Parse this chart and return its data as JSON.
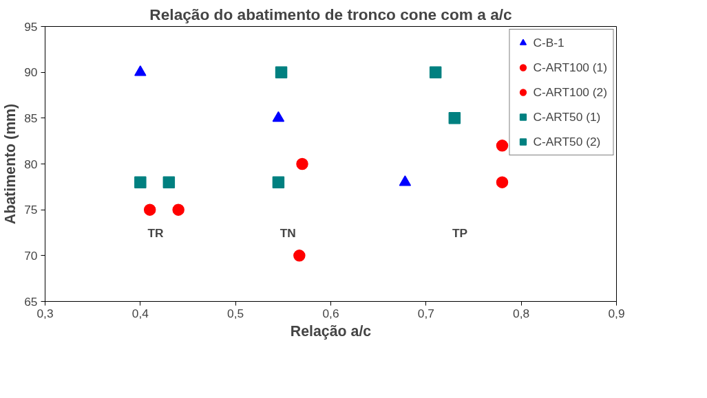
{
  "chart_data": {
    "type": "scatter",
    "title": "Relação do abatimento de tronco cone com a a/c",
    "xlabel": "Relação a/c",
    "ylabel": "Abatimento (mm)",
    "xlim": [
      0.3,
      0.9
    ],
    "xticks": [
      {
        "value": 0.3,
        "label": "0,3"
      },
      {
        "value": 0.4,
        "label": "0,4"
      },
      {
        "value": 0.5,
        "label": "0,5"
      },
      {
        "value": 0.6,
        "label": "0,6"
      },
      {
        "value": 0.7,
        "label": "0,7"
      },
      {
        "value": 0.8,
        "label": "0,8"
      },
      {
        "value": 0.9,
        "label": "0,9"
      }
    ],
    "ylim": [
      65,
      95
    ],
    "yticks": [
      65,
      70,
      75,
      80,
      85,
      90,
      95
    ],
    "grid": false,
    "legend": "right",
    "series": [
      {
        "name": "C-B-1",
        "color": "#0000ff",
        "marker": "triangle",
        "x": [
          0.4,
          0.545,
          0.678
        ],
        "values": [
          90,
          85,
          78
        ]
      },
      {
        "name": "C-ART100 (1)",
        "color": "#ff0000",
        "marker": "circle",
        "x": [
          0.41,
          0.567,
          0.78
        ],
        "values": [
          75,
          70,
          78
        ]
      },
      {
        "name": "C-ART100 (2)",
        "color": "#ff0000",
        "marker": "circle",
        "x": [
          0.44,
          0.57,
          0.78
        ],
        "values": [
          75,
          80,
          82
        ]
      },
      {
        "name": "C-ART50 (1)",
        "color": "#008080",
        "marker": "square",
        "x": [
          0.4,
          0.548,
          0.73
        ],
        "values": [
          78,
          90,
          85
        ]
      },
      {
        "name": "C-ART50 (2)",
        "color": "#008080",
        "marker": "square",
        "x": [
          0.43,
          0.545,
          0.71
        ],
        "values": [
          78,
          78,
          90
        ]
      }
    ],
    "annotations": [
      "TR",
      "TN",
      "TP"
    ]
  }
}
